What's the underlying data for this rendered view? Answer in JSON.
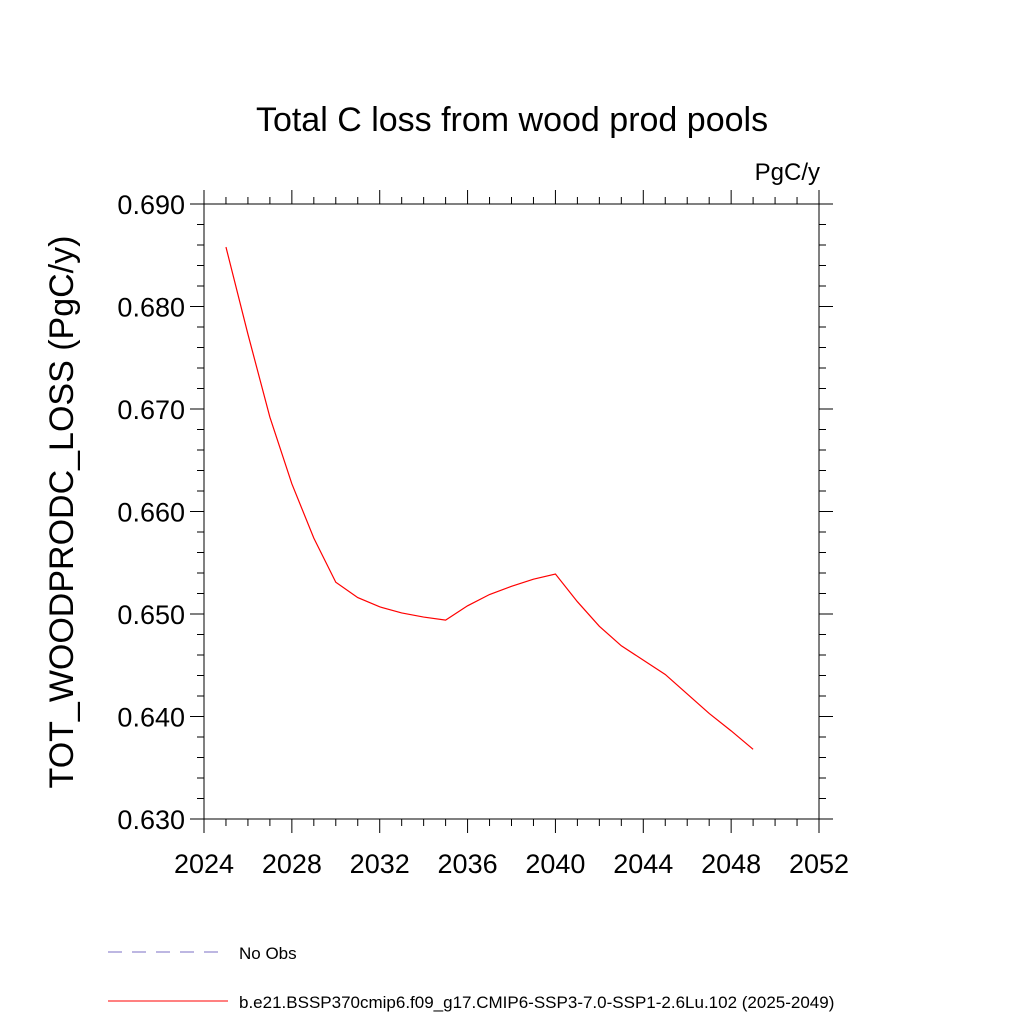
{
  "chart_data": {
    "type": "line",
    "title": "Total C loss from wood prod pools",
    "units_label": "PgC/y",
    "ylabel": "TOT_WOODPRODC_LOSS  (PgC/y)",
    "xlabel": "",
    "xlim": [
      2024,
      2052
    ],
    "ylim": [
      0.63,
      0.69
    ],
    "x_ticks": [
      "2024",
      "2028",
      "2032",
      "2036",
      "2040",
      "2044",
      "2048",
      "2052"
    ],
    "y_ticks": [
      "0.630",
      "0.640",
      "0.650",
      "0.660",
      "0.670",
      "0.680",
      "0.690"
    ],
    "grid": false,
    "legend_position": "bottom",
    "series": [
      {
        "name": "No Obs",
        "color": "#7b6fc4",
        "style": "dashed",
        "x": [],
        "y": []
      },
      {
        "name": "b.e21.BSSP370cmip6.f09_g17.CMIP6-SSP3-7.0-SSP1-2.6Lu.102 (2025-2049)",
        "color": "#ff0000",
        "style": "solid",
        "x": [
          2025,
          2026,
          2027,
          2028,
          2029,
          2030,
          2031,
          2032,
          2033,
          2034,
          2035,
          2036,
          2037,
          2038,
          2039,
          2040,
          2041,
          2042,
          2043,
          2044,
          2045,
          2046,
          2047,
          2048,
          2049
        ],
        "y": [
          0.6858,
          0.6773,
          0.6692,
          0.6627,
          0.6574,
          0.6531,
          0.6516,
          0.6507,
          0.6501,
          0.6497,
          0.6494,
          0.6508,
          0.6519,
          0.6527,
          0.6534,
          0.6539,
          0.6512,
          0.6488,
          0.6469,
          0.6455,
          0.6441,
          0.6422,
          0.6403,
          0.6386,
          0.6368
        ]
      }
    ]
  }
}
